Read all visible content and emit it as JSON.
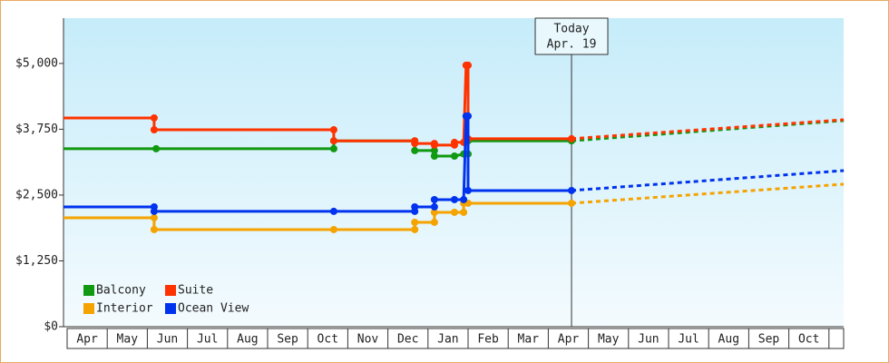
{
  "chart_data": {
    "type": "step-line",
    "categories": [
      "Apr",
      "May",
      "Jun",
      "Jul",
      "Aug",
      "Sep",
      "Oct",
      "Nov",
      "Dec",
      "Jan",
      "Feb",
      "Mar",
      "Apr",
      "May",
      "Jun",
      "Jul",
      "Aug",
      "Sep",
      "Oct"
    ],
    "xlim": [
      -0.09,
      19.37
    ],
    "ylim": [
      0,
      5860
    ],
    "yticks": [
      {
        "value": 0,
        "label": "$0"
      },
      {
        "value": 1250,
        "label": "$1,250"
      },
      {
        "value": 2500,
        "label": "$2,500"
      },
      {
        "value": 3750,
        "label": "$3,750"
      },
      {
        "value": 5000,
        "label": "$5,000"
      }
    ],
    "legend": "bottom-left",
    "annotation": {
      "lines": [
        "Today",
        "Apr. 19"
      ],
      "x": 12.58
    },
    "series": [
      {
        "name": "Balcony",
        "color": "#119911",
        "x": [
          -0.09,
          2.22,
          6.65,
          6.65,
          8.67,
          8.67,
          9.16,
          9.16,
          9.66,
          9.89,
          10.0,
          10.0,
          12.58
        ],
        "values": [
          3380,
          3380,
          3380,
          3530,
          3530,
          3345,
          3345,
          3240,
          3240,
          3280,
          3280,
          3530,
          3530
        ],
        "projection": {
          "x": [
            12.58,
            19.37
          ],
          "values": [
            3530,
            3915
          ]
        }
      },
      {
        "name": "Suite",
        "color": "#ff3300",
        "x": [
          -0.09,
          2.17,
          2.17,
          6.65,
          6.65,
          8.67,
          8.67,
          9.16,
          9.16,
          9.66,
          9.66,
          9.89,
          9.95,
          10.0,
          10.0,
          12.58
        ],
        "values": [
          3965,
          3965,
          3740,
          3740,
          3530,
          3530,
          3480,
          3480,
          3450,
          3450,
          3500,
          3500,
          4965,
          4965,
          3570,
          3570
        ],
        "projection": {
          "x": [
            12.58,
            19.37
          ],
          "values": [
            3570,
            3930
          ]
        }
      },
      {
        "name": "Interior",
        "color": "#f5a300",
        "x": [
          -0.09,
          2.17,
          2.17,
          6.65,
          8.67,
          8.67,
          9.16,
          9.16,
          9.66,
          9.89,
          9.89,
          10.0,
          12.58
        ],
        "values": [
          2069,
          2069,
          1845,
          1845,
          1845,
          1983,
          1983,
          2172,
          2172,
          2172,
          2345,
          2345,
          2345
        ],
        "projection": {
          "x": [
            12.58,
            19.37
          ],
          "values": [
            2345,
            2707
          ]
        }
      },
      {
        "name": "Ocean View",
        "color": "#0033ee",
        "x": [
          -0.09,
          2.17,
          2.17,
          6.65,
          8.67,
          8.67,
          9.16,
          9.16,
          9.66,
          9.89,
          9.95,
          10.0,
          10.0,
          12.58
        ],
        "values": [
          2276,
          2276,
          2190,
          2190,
          2190,
          2276,
          2276,
          2414,
          2414,
          2414,
          4000,
          4000,
          2586,
          2586
        ],
        "projection": {
          "x": [
            12.58,
            19.37
          ],
          "values": [
            2586,
            2965
          ]
        }
      }
    ]
  }
}
